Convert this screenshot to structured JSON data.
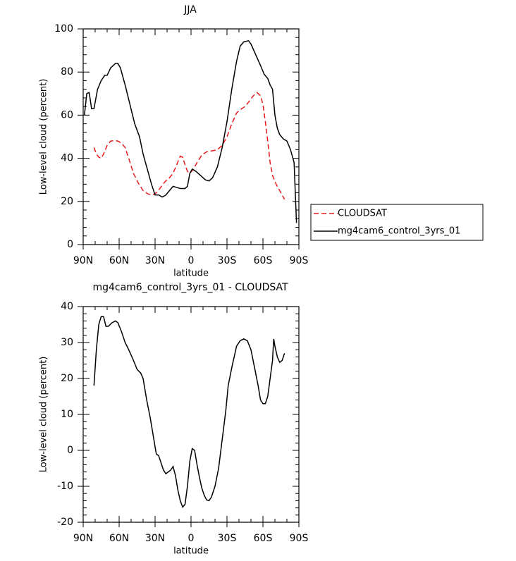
{
  "chart_data": [
    {
      "type": "line",
      "title": "JJA",
      "xlabel": "latitude",
      "ylabel": "Low-level cloud (percent)",
      "xlim": [
        90,
        -90
      ],
      "xticks": [
        {
          "value": 90,
          "label": "90N"
        },
        {
          "value": 60,
          "label": "60N"
        },
        {
          "value": 30,
          "label": "30N"
        },
        0,
        {
          "value": -30,
          "label": "30S"
        },
        {
          "value": -60,
          "label": "60S"
        },
        {
          "value": -90,
          "label": "90S"
        }
      ],
      "ylim": [
        0,
        100
      ],
      "yticks": [
        0,
        20,
        40,
        60,
        80,
        100
      ],
      "legend": "right",
      "series": [
        {
          "name": "CLOUDSAT",
          "color": "#e8191c",
          "style": "dashed",
          "x": [
            81,
            79,
            77,
            75,
            73,
            70,
            67,
            64,
            61,
            58,
            55,
            52,
            48,
            44,
            40,
            36,
            32,
            29,
            26,
            22,
            18,
            15,
            12,
            9,
            7,
            5,
            3,
            1,
            -2,
            -5,
            -9,
            -13,
            -18,
            -22,
            -26,
            -30,
            -34,
            -38,
            -41,
            -45,
            -48,
            -52,
            -55,
            -58,
            -60,
            -62,
            -64,
            -66,
            -68,
            -71,
            -74,
            -78
          ],
          "values": [
            45,
            42,
            40.5,
            40,
            42,
            46,
            48,
            48.2,
            48,
            47,
            45,
            40,
            33,
            28.5,
            25,
            23.5,
            23,
            24,
            26,
            29,
            31,
            33,
            37,
            41,
            40.5,
            37,
            34,
            33,
            35,
            38,
            41.5,
            43,
            43.5,
            44,
            46,
            50,
            56,
            61,
            62.5,
            64,
            66,
            69,
            70.5,
            69,
            65,
            57,
            48,
            38,
            32,
            28,
            25,
            21
          ]
        },
        {
          "name": "mg4cam6_control_3yrs_01",
          "color": "#000000",
          "style": "solid",
          "x": [
            89,
            87,
            85,
            83,
            81,
            78,
            75,
            72,
            70,
            67,
            63,
            61,
            59,
            55,
            51,
            47,
            43,
            40,
            36,
            33,
            30,
            27,
            24,
            21,
            18,
            15,
            12,
            9,
            5,
            3,
            1,
            -1,
            -4,
            -8,
            -12,
            -15,
            -18,
            -22,
            -26,
            -30,
            -34,
            -38,
            -41,
            -44,
            -48,
            -50,
            -54,
            -58,
            -61,
            -64,
            -66,
            -68,
            -70,
            -72,
            -74,
            -77,
            -80,
            -83,
            -86,
            -88
          ],
          "values": [
            60,
            70,
            70.5,
            63,
            63,
            72,
            76,
            78.5,
            78.5,
            82,
            84,
            84,
            82,
            74,
            65,
            56,
            50,
            42,
            34,
            28,
            23,
            23,
            22,
            23,
            25,
            27,
            26.5,
            26,
            26,
            27,
            33,
            35,
            34,
            32,
            30,
            29.5,
            31,
            36,
            45,
            57,
            72,
            85,
            92,
            94,
            94.5,
            93,
            88,
            83,
            79,
            77,
            74,
            72,
            60,
            54,
            51,
            49,
            48,
            44,
            38,
            10
          ]
        }
      ]
    },
    {
      "type": "line",
      "title": "mg4cam6_control_3yrs_01 - CLOUDSAT",
      "xlabel": "latitude",
      "ylabel": "Low-level cloud (percent)",
      "xlim": [
        90,
        -90
      ],
      "xticks": [
        {
          "value": 90,
          "label": "90N"
        },
        {
          "value": 60,
          "label": "60N"
        },
        {
          "value": 30,
          "label": "30N"
        },
        0,
        {
          "value": -30,
          "label": "30S"
        },
        {
          "value": -60,
          "label": "60S"
        },
        {
          "value": -90,
          "label": "90S"
        }
      ],
      "ylim": [
        -20,
        40
      ],
      "yticks": [
        -20,
        -10,
        0,
        10,
        20,
        30,
        40
      ],
      "series": [
        {
          "color": "#000000",
          "style": "solid",
          "x": [
            81,
            79,
            77,
            75,
            73,
            71,
            69,
            66,
            63,
            61,
            58,
            55,
            52,
            48,
            45,
            42,
            40,
            37,
            34,
            31,
            29,
            27,
            25,
            23,
            21,
            19,
            17,
            15,
            13,
            11,
            9,
            7,
            5,
            3,
            1,
            -1,
            -3,
            -5,
            -7,
            -9,
            -11,
            -13,
            -15,
            -17,
            -20,
            -23,
            -26,
            -29,
            -31,
            -34,
            -36,
            -38,
            -41,
            -44,
            -47,
            -50,
            -53,
            -56,
            -58,
            -60,
            -62,
            -64,
            -66,
            -68,
            -69,
            -70,
            -72,
            -74,
            -76,
            -78
          ],
          "values": [
            18,
            28,
            35,
            37.2,
            37.2,
            34.5,
            34.5,
            35.5,
            36,
            35.5,
            33,
            30,
            28,
            25,
            22.5,
            21.5,
            20,
            14,
            9,
            3,
            -1,
            -1.5,
            -3.5,
            -5.5,
            -6.5,
            -6,
            -5.5,
            -4.5,
            -7,
            -11,
            -14,
            -15.8,
            -15,
            -10,
            -3,
            0.5,
            0,
            -4,
            -7.5,
            -10.5,
            -12.5,
            -13.8,
            -14,
            -13,
            -10,
            -5,
            3,
            11,
            18,
            23,
            26,
            29,
            30.5,
            31,
            30.5,
            28,
            23,
            18,
            14,
            13,
            13,
            15,
            20,
            25,
            31,
            29,
            26,
            24.5,
            25,
            27
          ]
        }
      ]
    }
  ]
}
